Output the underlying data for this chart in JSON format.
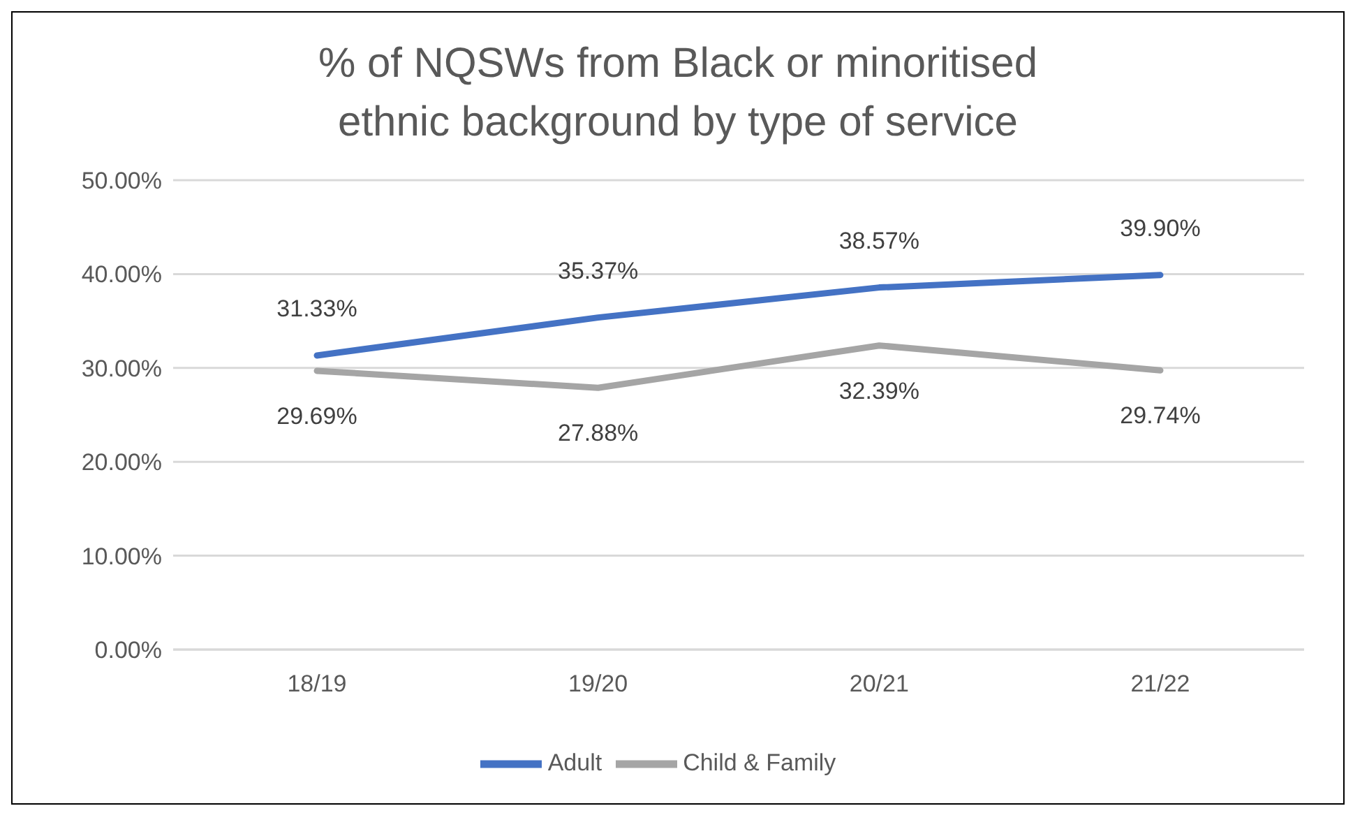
{
  "chart_data": {
    "type": "line",
    "title": "% of NQSWs from Black or minoritised ethnic background by type of service",
    "categories": [
      "18/19",
      "19/20",
      "20/21",
      "21/22"
    ],
    "series": [
      {
        "name": "Adult",
        "color": "#4472c4",
        "values": [
          31.33,
          35.37,
          38.57,
          39.9
        ],
        "value_labels": [
          "31.33%",
          "35.37%",
          "38.57%",
          "39.90%"
        ]
      },
      {
        "name": "Child & Family",
        "color": "#a5a5a5",
        "values": [
          29.69,
          27.88,
          32.39,
          29.74
        ],
        "value_labels": [
          "29.69%",
          "27.88%",
          "32.39%",
          "29.74%"
        ]
      }
    ],
    "ylim": [
      0,
      50
    ],
    "yticks": [
      {
        "value": 0,
        "label": "0.00%"
      },
      {
        "value": 10,
        "label": "10.00%"
      },
      {
        "value": 20,
        "label": "20.00%"
      },
      {
        "value": 30,
        "label": "30.00%"
      },
      {
        "value": 40,
        "label": "40.00%"
      },
      {
        "value": 50,
        "label": "50.00%"
      }
    ],
    "grid": "y",
    "legend": "bottom",
    "marker": "none",
    "line_style": "solid"
  }
}
